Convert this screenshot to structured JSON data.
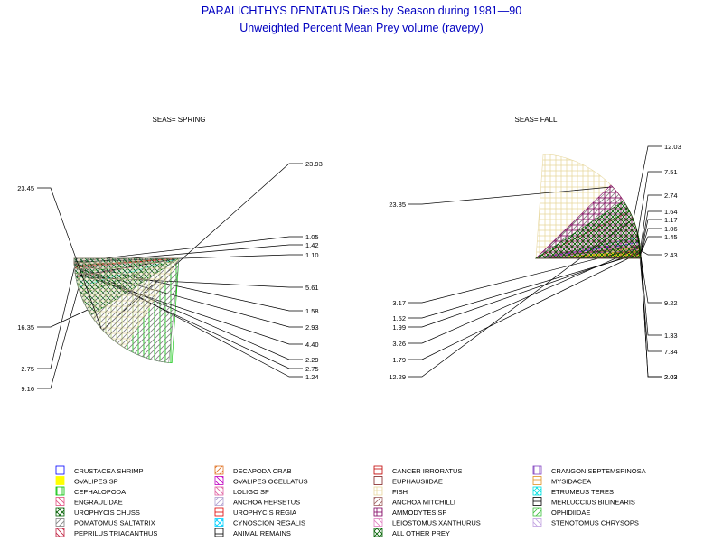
{
  "title": "PARALICHTHYS DENTATUS Diets by Season during 1981—90",
  "subtitle": "Unweighted Percent Mean Prey volume (ravepy)",
  "chart_data": [
    {
      "type": "pie",
      "panel_label": "SEAS= SPRING",
      "slices": [
        {
          "category": "CEPHALOPODA",
          "value": 23.93
        },
        {
          "category": "DECAPODA CRAB",
          "value": 1.05
        },
        {
          "category": "CANCER IRRORATUS",
          "value": 1.42
        },
        {
          "category": "EUPHAUSIIDAE",
          "value": 1.1
        },
        {
          "category": "ALL OTHER PREY",
          "value": 5.61
        },
        {
          "category": "LOLIGO SP",
          "value": 1.58
        },
        {
          "category": "ENGRAULIDAE",
          "value": 2.93
        },
        {
          "category": "ETRUMEUS TERES",
          "value": 4.4
        },
        {
          "category": "OPHIDIIDAE",
          "value": 2.29
        },
        {
          "category": "AMMODYTES SP",
          "value": 2.75
        },
        {
          "category": "UROPHYCIS REGIA",
          "value": 1.24
        },
        {
          "category": "UROPHYCIS CHUSS",
          "value": 9.16
        },
        {
          "category": "MERLUCCIUS BILINEARIS",
          "value": 2.75
        },
        {
          "category": "FISH",
          "value": 16.35
        },
        {
          "category": "POMATOMUS SALTATRIX",
          "value": 23.45
        }
      ]
    },
    {
      "type": "pie",
      "panel_label": "SEAS= FALL",
      "slices": [
        {
          "category": "CRUSTACEA SHRIMP",
          "value": 2.43
        },
        {
          "category": "DECAPODA CRAB",
          "value": 1.45
        },
        {
          "category": "CANCER IRRORATUS",
          "value": 1.06
        },
        {
          "category": "MYSIDACEA",
          "value": 1.17
        },
        {
          "category": "OVALIPES SP",
          "value": 1.64
        },
        {
          "category": "OVALIPES OCELLATUS",
          "value": 2.74
        },
        {
          "category": "CEPHALOPODA",
          "value": 7.51
        },
        {
          "category": "POMATOMUS SALTATRIX",
          "value": 12.03
        },
        {
          "category": "FISH",
          "value": 23.85
        },
        {
          "category": "ETRUMEUS TERES",
          "value": 3.17
        },
        {
          "category": "ANCHOA HEPSETUS",
          "value": 1.52
        },
        {
          "category": "ENGRAULIDAE",
          "value": 1.99
        },
        {
          "category": "ANCHOA MITCHILLI",
          "value": 3.26
        },
        {
          "category": "MERLUCCIUS BILINEARIS",
          "value": 1.79
        },
        {
          "category": "AMMODYTES SP",
          "value": 12.29
        },
        {
          "category": "PEPRILUS TRIACANTHUS",
          "value": 2.03
        },
        {
          "category": "LEIOSTOMUS XANTHURUS",
          "value": 2.03
        },
        {
          "category": "STENOTOMUS CHRYSOPS",
          "value": 1.33
        },
        {
          "category": "PEPRILUS TRIACANTHUS",
          "value": 7.34
        },
        {
          "category": "ALL OTHER PREY",
          "value": 9.22
        }
      ]
    }
  ],
  "legend": {
    "entries": [
      {
        "label": "CRUSTACEA SHRIMP",
        "color": "#0000ff"
      },
      {
        "label": "DECAPODA CRAB",
        "color": "#e07020"
      },
      {
        "label": "CANCER IRRORATUS",
        "color": "#c00000"
      },
      {
        "label": "CRANGON SEPTEMSPINOSA",
        "color": "#8040c0"
      },
      {
        "label": "OVALIPES SP",
        "color": "#ffff00"
      },
      {
        "label": "OVALIPES OCELLATUS",
        "color": "#c000c0"
      },
      {
        "label": "EUPHAUSIIDAE",
        "color": "#802020"
      },
      {
        "label": "MYSIDACEA",
        "color": "#e09020"
      },
      {
        "label": "CEPHALOPODA",
        "color": "#00c000"
      },
      {
        "label": "LOLIGO SP",
        "color": "#e060a0"
      },
      {
        "label": "FISH",
        "color": "#e8d8a0"
      },
      {
        "label": "ETRUMEUS TERES",
        "color": "#00e0e0"
      },
      {
        "label": "ENGRAULIDAE",
        "color": "#e05080"
      },
      {
        "label": "ANCHOA HEPSETUS",
        "color": "#b0a0d0"
      },
      {
        "label": "ANCHOA MITCHILLI",
        "color": "#a06060"
      },
      {
        "label": "MERLUCCIUS BILINEARIS",
        "color": "#000000"
      },
      {
        "label": "UROPHYCIS CHUSS",
        "color": "#006000"
      },
      {
        "label": "UROPHYCIS REGIA",
        "color": "#e00000"
      },
      {
        "label": "AMMODYTES SP",
        "color": "#800060"
      },
      {
        "label": "OPHIDIIDAE",
        "color": "#40c040"
      },
      {
        "label": "POMATOMUS SALTATRIX",
        "color": "#808080"
      },
      {
        "label": "CYNOSCION REGALIS",
        "color": "#00d0ff"
      },
      {
        "label": "LEIOSTOMUS XANTHURUS",
        "color": "#e080c0"
      },
      {
        "label": "STENOTOMUS CHRYSOPS",
        "color": "#c0a0e0"
      },
      {
        "label": "PEPRILUS TRIACANTHUS",
        "color": "#c02040"
      },
      {
        "label": "ANIMAL REMAINS",
        "color": "#000000"
      },
      {
        "label": "ALL OTHER PREY",
        "color": "#006000"
      }
    ]
  }
}
